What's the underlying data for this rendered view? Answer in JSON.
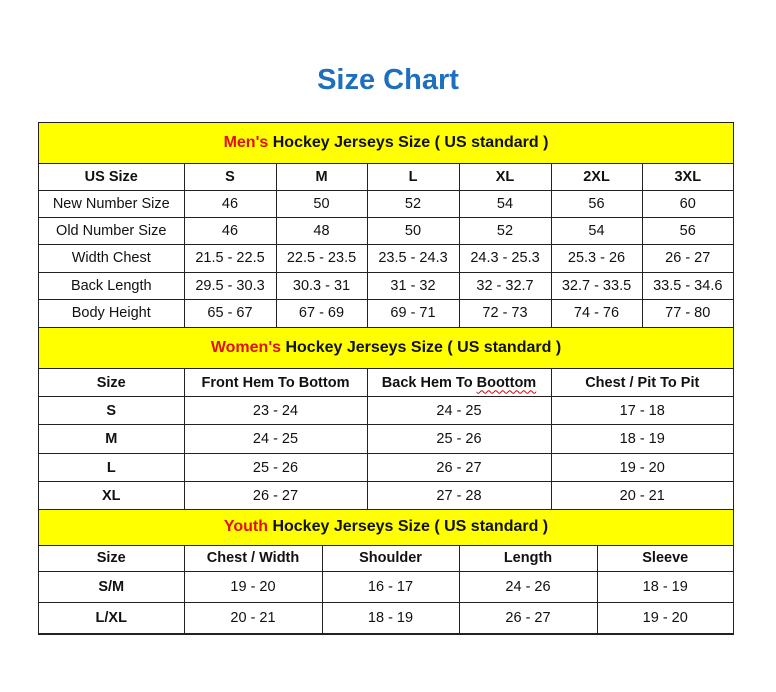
{
  "title": "Size Chart",
  "colors": {
    "title": "#1f6fbf",
    "section_bg": "#ffff00",
    "accent_red": "#e01010"
  },
  "men": {
    "prefix": "Men's",
    "heading": "Hockey Jerseys Size ( US standard )",
    "headers": [
      "US Size",
      "S",
      "M",
      "L",
      "XL",
      "2XL",
      "3XL"
    ],
    "rows": [
      [
        "New Number Size",
        "46",
        "50",
        "52",
        "54",
        "56",
        "60"
      ],
      [
        "Old Number Size",
        "46",
        "48",
        "50",
        "52",
        "54",
        "56"
      ],
      [
        "Width Chest",
        "21.5 - 22.5",
        "22.5 - 23.5",
        "23.5 - 24.3",
        "24.3 - 25.3",
        "25.3 - 26",
        "26 - 27"
      ],
      [
        "Back Length",
        "29.5 - 30.3",
        "30.3 - 31",
        "31 - 32",
        "32 - 32.7",
        "32.7 - 33.5",
        "33.5 - 34.6"
      ],
      [
        "Body Height",
        "65 - 67",
        "67 - 69",
        "69 - 71",
        "72 - 73",
        "74 - 76",
        "77 - 80"
      ]
    ]
  },
  "women": {
    "prefix": "Women's",
    "heading": "Hockey Jerseys Size ( US standard )",
    "headers": [
      "Size",
      "Front Hem To Bottom",
      "Back Hem To Boottom",
      "Chest / Pit To Pit"
    ],
    "rows": [
      [
        "S",
        "23 - 24",
        "24 - 25",
        "17 - 18"
      ],
      [
        "M",
        "24 - 25",
        "25 - 26",
        "18 - 19"
      ],
      [
        "L",
        "25 - 26",
        "26 - 27",
        "19 - 20"
      ],
      [
        "XL",
        "26 - 27",
        "27 - 28",
        "20 - 21"
      ]
    ]
  },
  "youth": {
    "prefix": "Youth",
    "heading": "Hockey Jerseys Size ( US standard )",
    "headers": [
      "Size",
      "Chest / Width",
      "Shoulder",
      "Length",
      "Sleeve"
    ],
    "rows": [
      [
        "S/M",
        "19 - 20",
        "16 - 17",
        "24 - 26",
        "18 - 19"
      ],
      [
        "L/XL",
        "20 - 21",
        "18 - 19",
        "26 - 27",
        "19 - 20"
      ]
    ]
  }
}
